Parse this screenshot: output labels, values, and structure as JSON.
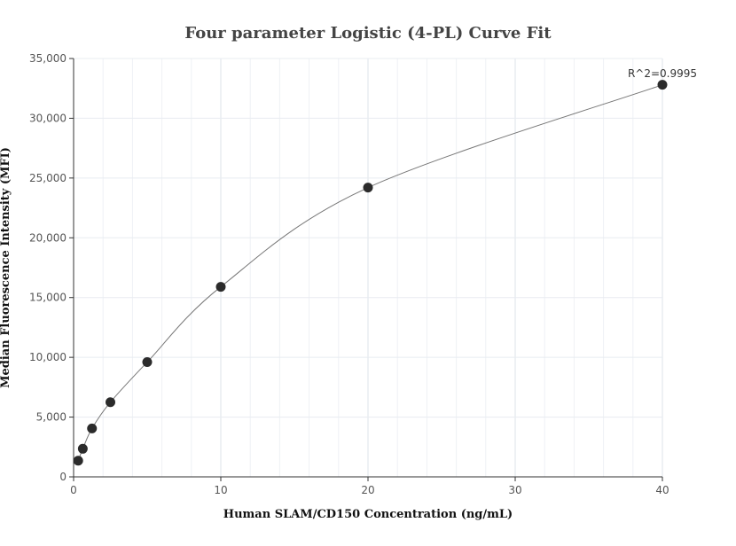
{
  "chart_data": {
    "type": "scatter",
    "title": "Four parameter Logistic (4-PL) Curve Fit",
    "xlabel": "Human SLAM/CD150 Concentration (ng/mL)",
    "ylabel": "Median Fluorescence Intensity (MFI)",
    "xlim": [
      0,
      40
    ],
    "ylim": [
      0,
      35000
    ],
    "x_ticks": [
      0,
      10,
      20,
      30,
      40
    ],
    "x_tick_labels": [
      "0",
      "10",
      "20",
      "30",
      "40"
    ],
    "y_ticks": [
      0,
      5000,
      10000,
      15000,
      20000,
      25000,
      30000,
      35000
    ],
    "y_tick_labels": [
      "0",
      "5,000",
      "10,000",
      "15,000",
      "20,000",
      "25,000",
      "30,000",
      "35,000"
    ],
    "grid": true,
    "annotation": "R^2=0.9995",
    "series": [
      {
        "x": [
          0.3125,
          0.625,
          1.25,
          2.5,
          5,
          10,
          20,
          40
        ],
        "y": [
          1350,
          2350,
          4050,
          6250,
          9600,
          15900,
          24200,
          32800
        ]
      }
    ],
    "colors": {
      "point": "#2b2b2b",
      "curve": "#777777",
      "grid": "#e8ecf1",
      "axis": "#333333"
    }
  }
}
